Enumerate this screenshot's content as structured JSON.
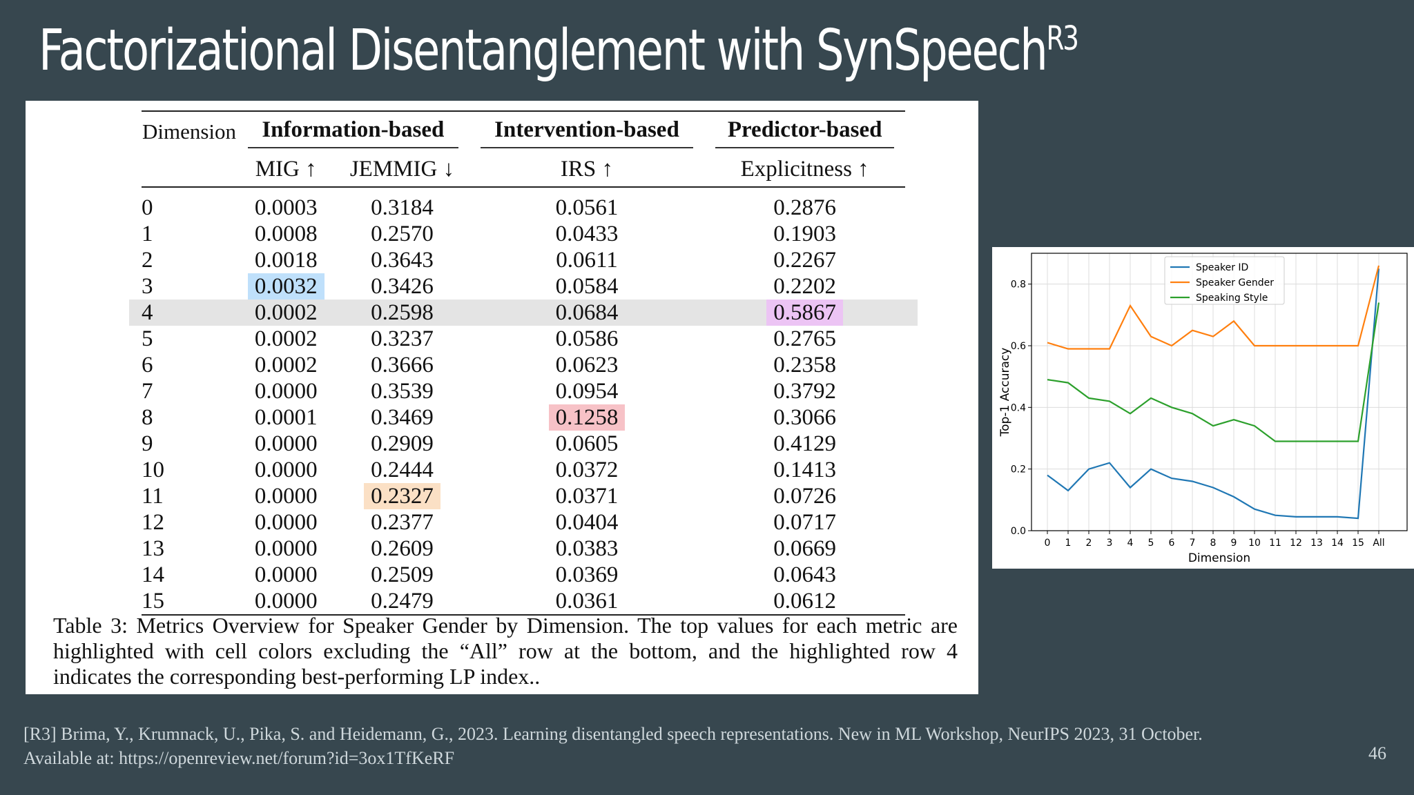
{
  "slide": {
    "title": "Factorizational Disentanglement with SynSpeech",
    "title_sup": "R3",
    "reference_line1": "[R3] Brima, Y., Krumnack, U., Pika, S. and Heidemann, G., 2023. Learning disentangled speech representations. New in ML Workshop, NeurIPS 2023, 31 October.",
    "reference_line2": "Available at: https://openreview.net/forum?id=3ox1TfKeRF",
    "page_number": "46"
  },
  "table": {
    "dimension_header": "Dimension",
    "groups": [
      "Information-based",
      "Intervention-based",
      "Predictor-based"
    ],
    "columns": [
      "MIG ↑",
      "JEMMIG ↓",
      "IRS ↑",
      "Explicitness ↑"
    ],
    "highlight_row": "4",
    "highlights": {
      "mig": {
        "row": 3,
        "color": "#bfe0fb"
      },
      "jemmig": {
        "row": 11,
        "color": "#fbe0c5"
      },
      "irs": {
        "row": 8,
        "color": "#f7c2c7"
      },
      "explicitness": {
        "row": 4,
        "color": "#ecc4f4"
      }
    },
    "rows": [
      {
        "dim": "0",
        "mig": "0.0003",
        "jemmig": "0.3184",
        "irs": "0.0561",
        "explicitness": "0.2876"
      },
      {
        "dim": "1",
        "mig": "0.0008",
        "jemmig": "0.2570",
        "irs": "0.0433",
        "explicitness": "0.1903"
      },
      {
        "dim": "2",
        "mig": "0.0018",
        "jemmig": "0.3643",
        "irs": "0.0611",
        "explicitness": "0.2267"
      },
      {
        "dim": "3",
        "mig": "0.0032",
        "jemmig": "0.3426",
        "irs": "0.0584",
        "explicitness": "0.2202"
      },
      {
        "dim": "4",
        "mig": "0.0002",
        "jemmig": "0.2598",
        "irs": "0.0684",
        "explicitness": "0.5867"
      },
      {
        "dim": "5",
        "mig": "0.0002",
        "jemmig": "0.3237",
        "irs": "0.0586",
        "explicitness": "0.2765"
      },
      {
        "dim": "6",
        "mig": "0.0002",
        "jemmig": "0.3666",
        "irs": "0.0623",
        "explicitness": "0.2358"
      },
      {
        "dim": "7",
        "mig": "0.0000",
        "jemmig": "0.3539",
        "irs": "0.0954",
        "explicitness": "0.3792"
      },
      {
        "dim": "8",
        "mig": "0.0001",
        "jemmig": "0.3469",
        "irs": "0.1258",
        "explicitness": "0.3066"
      },
      {
        "dim": "9",
        "mig": "0.0000",
        "jemmig": "0.2909",
        "irs": "0.0605",
        "explicitness": "0.4129"
      },
      {
        "dim": "10",
        "mig": "0.0000",
        "jemmig": "0.2444",
        "irs": "0.0372",
        "explicitness": "0.1413"
      },
      {
        "dim": "11",
        "mig": "0.0000",
        "jemmig": "0.2327",
        "irs": "0.0371",
        "explicitness": "0.0726"
      },
      {
        "dim": "12",
        "mig": "0.0000",
        "jemmig": "0.2377",
        "irs": "0.0404",
        "explicitness": "0.0717"
      },
      {
        "dim": "13",
        "mig": "0.0000",
        "jemmig": "0.2609",
        "irs": "0.0383",
        "explicitness": "0.0669"
      },
      {
        "dim": "14",
        "mig": "0.0000",
        "jemmig": "0.2509",
        "irs": "0.0369",
        "explicitness": "0.0643"
      },
      {
        "dim": "15",
        "mig": "0.0000",
        "jemmig": "0.2479",
        "irs": "0.0361",
        "explicitness": "0.0612"
      }
    ],
    "caption": "Table 3: Metrics Overview for Speaker Gender by Dimension. The top values for each metric are highlighted with cell colors excluding the “All” row at the bottom, and the highlighted row 4 indicates the corresponding best-performing LP index.."
  },
  "chart_data": {
    "type": "line",
    "title": "",
    "xlabel": "Dimension",
    "ylabel": "Top-1 Accuracy",
    "categories": [
      "0",
      "1",
      "2",
      "3",
      "4",
      "5",
      "6",
      "7",
      "8",
      "9",
      "10",
      "11",
      "12",
      "13",
      "14",
      "15",
      "All"
    ],
    "ylim": [
      0.0,
      0.9
    ],
    "yticks": [
      "0.0",
      "0.2",
      "0.4",
      "0.6",
      "0.8"
    ],
    "grid": true,
    "legend_position": "top-center",
    "series": [
      {
        "name": "Speaker ID",
        "color": "#1f77b4",
        "values": [
          0.18,
          0.13,
          0.2,
          0.22,
          0.14,
          0.2,
          0.17,
          0.16,
          0.14,
          0.11,
          0.07,
          0.05,
          0.045,
          0.045,
          0.045,
          0.04,
          0.85
        ]
      },
      {
        "name": "Speaker Gender",
        "color": "#ff7f0e",
        "values": [
          0.61,
          0.59,
          0.59,
          0.59,
          0.73,
          0.63,
          0.6,
          0.65,
          0.63,
          0.68,
          0.6,
          0.6,
          0.6,
          0.6,
          0.6,
          0.6,
          0.86
        ]
      },
      {
        "name": "Speaking Style",
        "color": "#2ca02c",
        "values": [
          0.49,
          0.48,
          0.43,
          0.42,
          0.38,
          0.43,
          0.4,
          0.38,
          0.34,
          0.36,
          0.34,
          0.29,
          0.29,
          0.29,
          0.29,
          0.29,
          0.74
        ]
      }
    ]
  }
}
